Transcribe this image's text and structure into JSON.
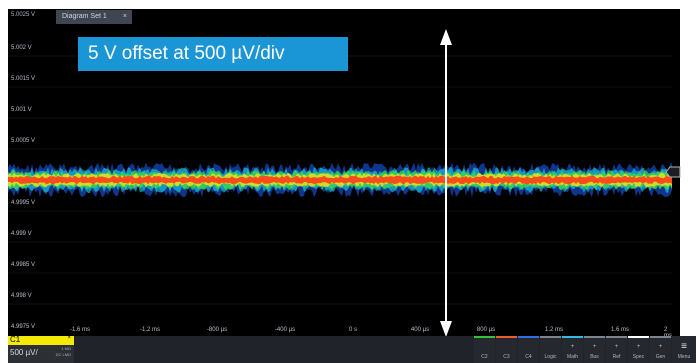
{
  "window": {
    "tab_title": "Diagram Set 1",
    "tab_close": "×",
    "top_value": "5.0025 V"
  },
  "overlay": {
    "text": "5 V offset at 500 µV/div"
  },
  "y_axis_labels": [
    "5.002 V",
    "5.0015 V",
    "5.001 V",
    "5.0005 V",
    "4.9995 V",
    "4.999 V",
    "4.9985 V",
    "4.998 V",
    "4.9975 V"
  ],
  "x_axis_labels": [
    "-1.6 ms",
    "-1.2 ms",
    "-800 µs",
    "-400 µs",
    "0 s",
    "400 µs",
    "800 µs",
    "1.2 ms",
    "1.6 ms",
    "2 ms"
  ],
  "channel": {
    "name": "C1",
    "close": "×",
    "scale": "500 µV/",
    "info_line1": "1 MΩ",
    "info_line2": "DC LMD"
  },
  "buttons": [
    {
      "label": "C2",
      "plus": "",
      "stripe": "#36c13a"
    },
    {
      "label": "C3",
      "plus": "",
      "stripe": "#e8612c"
    },
    {
      "label": "C4",
      "plus": "",
      "stripe": "#2f6fe0"
    },
    {
      "label": "Logic",
      "plus": "",
      "stripe": "#7c8590"
    },
    {
      "label": "Math",
      "plus": "+",
      "stripe": "#36b8e6"
    },
    {
      "label": "Bus",
      "plus": "+",
      "stripe": "#7c8590"
    },
    {
      "label": "Ref",
      "plus": "+",
      "stripe": "#7c8590"
    },
    {
      "label": "Spec",
      "plus": "+",
      "stripe": "#ffffff"
    },
    {
      "label": "Gen",
      "plus": "+",
      "stripe": "#7c8590"
    }
  ],
  "menu": {
    "label": "Menu",
    "icon": "hamburger-icon"
  },
  "trace_colors": {
    "blue": "#1a63ff",
    "cyan": "#1fd7e8",
    "green": "#3fe13a",
    "yellow": "#f2e21c",
    "red": "#ff3b1c"
  }
}
